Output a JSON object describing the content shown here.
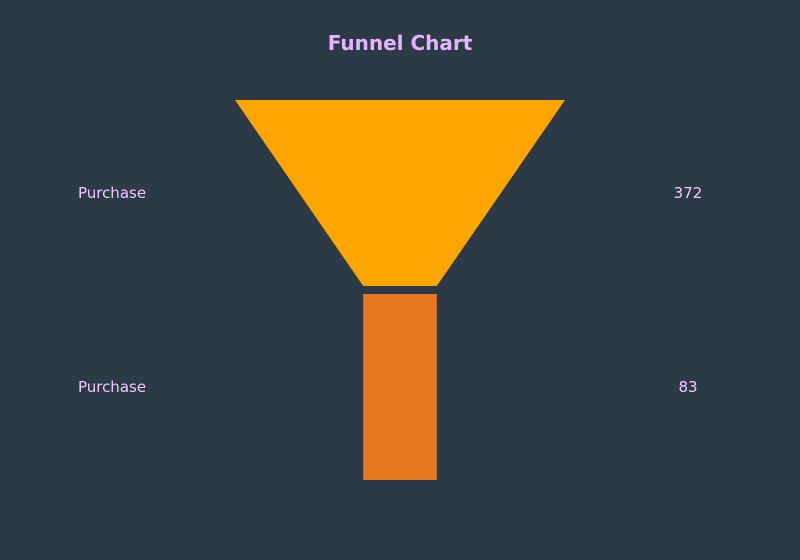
{
  "chart_data": {
    "type": "funnel",
    "title": "Funnel Chart",
    "stages": [
      {
        "label": "Purchase",
        "value": 372,
        "color": "#ffa500"
      },
      {
        "label": "Purchase",
        "value": 83,
        "color": "#e6781e"
      }
    ]
  },
  "colors": {
    "background": "#2c3a48",
    "text": "#f0c8ff",
    "title": "#e6b3ff"
  }
}
